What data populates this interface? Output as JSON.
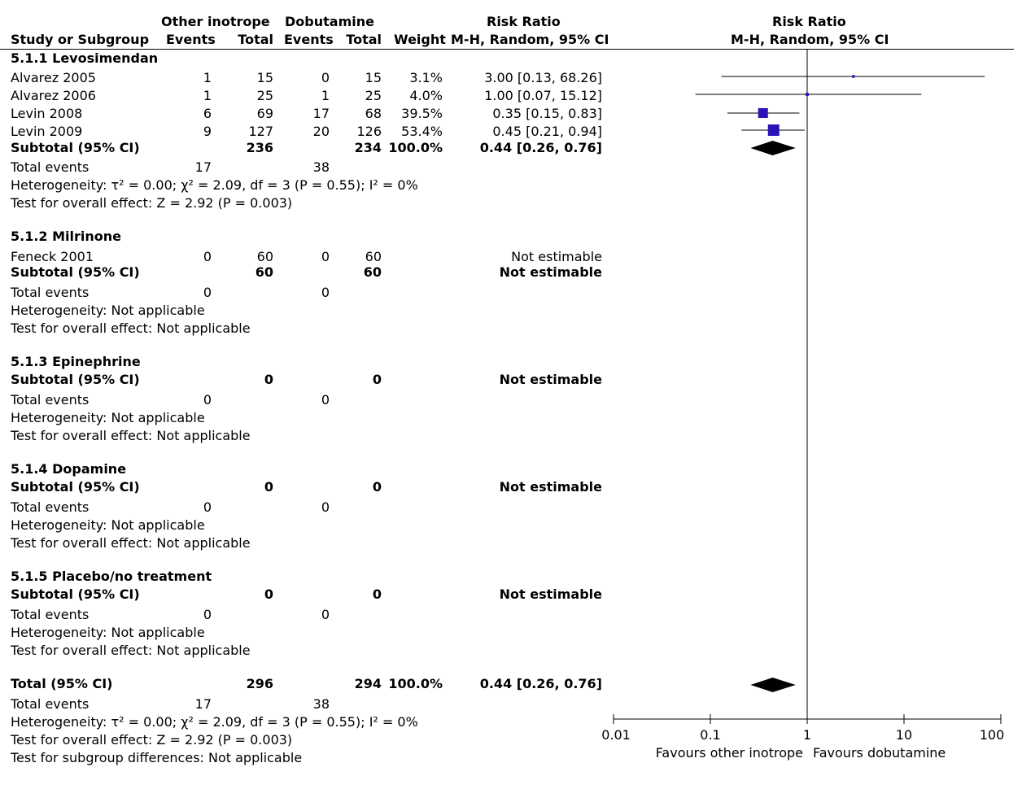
{
  "headers": {
    "col_group_1": "Other inotrope",
    "col_group_2": "Dobutamine",
    "col_rr": "Risk Ratio",
    "study": "Study or Subgroup",
    "events1": "Events",
    "total1": "Total",
    "events2": "Events",
    "total2": "Total",
    "weight": "Weight",
    "method": "M-H, Random, 95% CI",
    "plot_title": "Risk Ratio",
    "plot_method": "M-H, Random, 95% CI"
  },
  "subgroups": [
    {
      "title": "5.1.1 Levosimendan",
      "studies": [
        {
          "name": "Alvarez 2005",
          "e1": "1",
          "t1": "15",
          "e2": "0",
          "t2": "15",
          "w": "3.1%",
          "ci": "3.00 [0.13, 68.26]"
        },
        {
          "name": "Alvarez 2006",
          "e1": "1",
          "t1": "25",
          "e2": "1",
          "t2": "25",
          "w": "4.0%",
          "ci": "1.00 [0.07, 15.12]"
        },
        {
          "name": "Levin 2008",
          "e1": "6",
          "t1": "69",
          "e2": "17",
          "t2": "68",
          "w": "39.5%",
          "ci": "0.35 [0.15, 0.83]"
        },
        {
          "name": "Levin 2009",
          "e1": "9",
          "t1": "127",
          "e2": "20",
          "t2": "126",
          "w": "53.4%",
          "ci": "0.45 [0.21, 0.94]"
        }
      ],
      "subtotal": {
        "label": "Subtotal (95% CI)",
        "t1": "236",
        "t2": "234",
        "w": "100.0%",
        "ci": "0.44 [0.26, 0.76]"
      },
      "total_events": {
        "label": "Total events",
        "e1": "17",
        "e2": "38"
      },
      "heterogeneity": "Heterogeneity: τ² = 0.00;  χ² = 2.09, df = 3 (P = 0.55); I² = 0%",
      "overall": "Test for overall effect: Z = 2.92 (P = 0.003)"
    },
    {
      "title": "5.1.2 Milrinone",
      "studies": [
        {
          "name": "Feneck 2001",
          "e1": "0",
          "t1": "60",
          "e2": "0",
          "t2": "60",
          "w": "",
          "ci": "Not estimable"
        }
      ],
      "subtotal": {
        "label": "Subtotal (95% CI)",
        "t1": "60",
        "t2": "60",
        "w": "",
        "ci": "Not estimable"
      },
      "total_events": {
        "label": "Total events",
        "e1": "0",
        "e2": "0"
      },
      "heterogeneity": "Heterogeneity: Not applicable",
      "overall": "Test for overall effect: Not applicable"
    },
    {
      "title": "5.1.3 Epinephrine",
      "studies": [],
      "subtotal": {
        "label": "Subtotal (95% CI)",
        "t1": "0",
        "t2": "0",
        "w": "",
        "ci": "Not estimable"
      },
      "total_events": {
        "label": "Total events",
        "e1": "0",
        "e2": "0"
      },
      "heterogeneity": "Heterogeneity: Not applicable",
      "overall": "Test for overall effect: Not applicable"
    },
    {
      "title": "5.1.4 Dopamine",
      "studies": [],
      "subtotal": {
        "label": "Subtotal (95% CI)",
        "t1": "0",
        "t2": "0",
        "w": "",
        "ci": "Not estimable"
      },
      "total_events": {
        "label": "Total events",
        "e1": "0",
        "e2": "0"
      },
      "heterogeneity": "Heterogeneity: Not applicable",
      "overall": "Test for overall effect: Not applicable"
    },
    {
      "title": "5.1.5 Placebo/no treatment",
      "studies": [],
      "subtotal": {
        "label": "Subtotal (95% CI)",
        "t1": "0",
        "t2": "0",
        "w": "",
        "ci": "Not estimable"
      },
      "total_events": {
        "label": "Total events",
        "e1": "0",
        "e2": "0"
      },
      "heterogeneity": "Heterogeneity: Not applicable",
      "overall": "Test for overall effect: Not applicable"
    }
  ],
  "total": {
    "label": "Total (95% CI)",
    "t1": "296",
    "t2": "294",
    "w": "100.0%",
    "ci": "0.44 [0.26, 0.76]",
    "events_label": "Total events",
    "e1": "17",
    "e2": "38",
    "heterogeneity": "Heterogeneity: τ² = 0.00;  χ² = 2.09, df = 3 (P = 0.55); I² = 0%",
    "overall": "Test for overall effect: Z = 2.92 (P = 0.003)",
    "subgroup_diff": "Test for subgroup differences: Not applicable"
  },
  "axis": {
    "ticks": [
      "0.01",
      "0.1",
      "1",
      "10",
      "100"
    ],
    "favours_left": "Favours other inotrope",
    "favours_right": "Favours dobutamine"
  },
  "colors": {
    "marker": "#2a14b8",
    "diamond": "#000000"
  },
  "chart_data": {
    "type": "forest",
    "scale": "log",
    "xlim": [
      0.01,
      100
    ],
    "studies": [
      {
        "name": "Alvarez 2005",
        "rr": 3.0,
        "lo": 0.13,
        "hi": 68.26,
        "weight": 3.1
      },
      {
        "name": "Alvarez 2006",
        "rr": 1.0,
        "lo": 0.07,
        "hi": 15.12,
        "weight": 4.0
      },
      {
        "name": "Levin 2008",
        "rr": 0.35,
        "lo": 0.15,
        "hi": 0.83,
        "weight": 39.5
      },
      {
        "name": "Levin 2009",
        "rr": 0.45,
        "lo": 0.21,
        "hi": 0.94,
        "weight": 53.4
      }
    ],
    "subtotal": {
      "rr": 0.44,
      "lo": 0.26,
      "hi": 0.76
    },
    "overall": {
      "rr": 0.44,
      "lo": 0.26,
      "hi": 0.76
    }
  }
}
